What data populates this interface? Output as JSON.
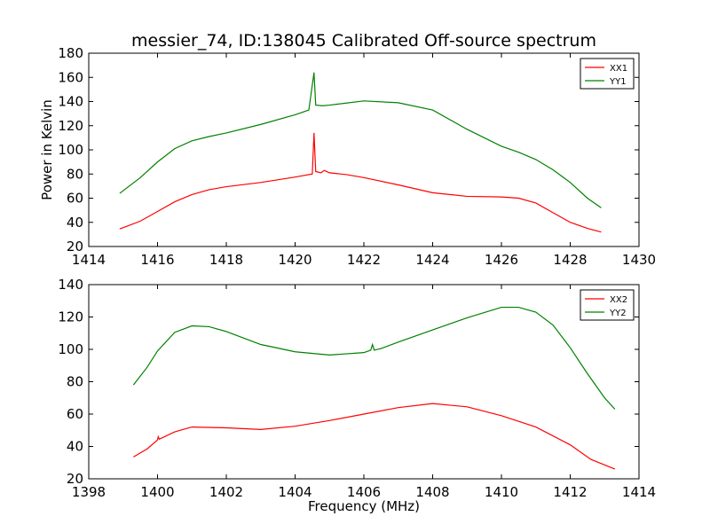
{
  "chart_data": [
    {
      "type": "line",
      "title": "messier_74, ID:138045 Calibrated Off-source spectrum",
      "xlabel": "",
      "ylabel": "Power in Kelvin",
      "xlim": [
        1414,
        1430
      ],
      "ylim": [
        20,
        180
      ],
      "xticks": [
        "1414",
        "1416",
        "1418",
        "1420",
        "1422",
        "1424",
        "1426",
        "1428",
        "1430"
      ],
      "yticks": [
        "20",
        "40",
        "60",
        "80",
        "100",
        "120",
        "140",
        "160",
        "180"
      ],
      "grid": false,
      "legend": "top-right",
      "series": [
        {
          "name": "XX1",
          "color": "#ff0000",
          "points": [
            [
              1414.9,
              34.5
            ],
            [
              1415.5,
              41
            ],
            [
              1416,
              49
            ],
            [
              1416.5,
              57
            ],
            [
              1417,
              63
            ],
            [
              1417.5,
              67
            ],
            [
              1418,
              69.5
            ],
            [
              1419,
              73
            ],
            [
              1420,
              77.5
            ],
            [
              1420.5,
              80
            ],
            [
              1420.55,
              114
            ],
            [
              1420.6,
              82
            ],
            [
              1420.75,
              81
            ],
            [
              1420.85,
              83
            ],
            [
              1421,
              81
            ],
            [
              1421.5,
              79.5
            ],
            [
              1422,
              77
            ],
            [
              1423,
              71
            ],
            [
              1424,
              64.5
            ],
            [
              1425,
              61.5
            ],
            [
              1426,
              61
            ],
            [
              1426.5,
              60
            ],
            [
              1427,
              56
            ],
            [
              1427.5,
              48
            ],
            [
              1428,
              40
            ],
            [
              1428.5,
              35
            ],
            [
              1428.9,
              32
            ]
          ]
        },
        {
          "name": "YY1",
          "color": "#008000",
          "points": [
            [
              1414.9,
              64
            ],
            [
              1415.5,
              77
            ],
            [
              1416,
              90
            ],
            [
              1416.5,
              101
            ],
            [
              1417,
              107.5
            ],
            [
              1417.5,
              111
            ],
            [
              1418,
              114
            ],
            [
              1419,
              121
            ],
            [
              1420,
              129
            ],
            [
              1420.4,
              133
            ],
            [
              1420.55,
              164
            ],
            [
              1420.6,
              137
            ],
            [
              1420.8,
              136.5
            ],
            [
              1421,
              137
            ],
            [
              1422,
              140.5
            ],
            [
              1423,
              139
            ],
            [
              1424,
              133
            ],
            [
              1425,
              117
            ],
            [
              1426,
              103
            ],
            [
              1426.5,
              98
            ],
            [
              1427,
              92
            ],
            [
              1427.5,
              83.5
            ],
            [
              1428,
              73
            ],
            [
              1428.5,
              60
            ],
            [
              1428.9,
              52
            ]
          ]
        }
      ]
    },
    {
      "type": "line",
      "title": "",
      "xlabel": "Frequency (MHz)",
      "ylabel": "",
      "xlim": [
        1398,
        1414
      ],
      "ylim": [
        20,
        140
      ],
      "xticks": [
        "1398",
        "1400",
        "1402",
        "1404",
        "1406",
        "1408",
        "1410",
        "1412",
        "1414"
      ],
      "yticks": [
        "20",
        "40",
        "60",
        "80",
        "100",
        "120",
        "140"
      ],
      "grid": false,
      "legend": "top-right",
      "series": [
        {
          "name": "XX2",
          "color": "#ff0000",
          "points": [
            [
              1399.3,
              33.5
            ],
            [
              1399.7,
              38.5
            ],
            [
              1400,
              44
            ],
            [
              1400.02,
              46
            ],
            [
              1400.05,
              44.5
            ],
            [
              1400.5,
              49
            ],
            [
              1401,
              52
            ],
            [
              1402,
              51.5
            ],
            [
              1403,
              50.5
            ],
            [
              1404,
              52.5
            ],
            [
              1405,
              56
            ],
            [
              1406,
              60
            ],
            [
              1407,
              64
            ],
            [
              1408,
              66.5
            ],
            [
              1409,
              64.5
            ],
            [
              1410,
              59
            ],
            [
              1411,
              52
            ],
            [
              1412,
              41
            ],
            [
              1412.6,
              32
            ],
            [
              1413.3,
              26
            ]
          ]
        },
        {
          "name": "YY2",
          "color": "#008000",
          "points": [
            [
              1399.3,
              78
            ],
            [
              1399.7,
              89
            ],
            [
              1400,
              99
            ],
            [
              1400.5,
              110.5
            ],
            [
              1401,
              114.5
            ],
            [
              1401.5,
              114
            ],
            [
              1402,
              111
            ],
            [
              1403,
              103
            ],
            [
              1404,
              98.5
            ],
            [
              1405,
              96.5
            ],
            [
              1406,
              98
            ],
            [
              1406.2,
              99.5
            ],
            [
              1406.25,
              103
            ],
            [
              1406.3,
              99.5
            ],
            [
              1406.5,
              100.5
            ],
            [
              1407,
              104.5
            ],
            [
              1408,
              112
            ],
            [
              1409,
              119.5
            ],
            [
              1410,
              126
            ],
            [
              1410.5,
              126
            ],
            [
              1411,
              123
            ],
            [
              1411.5,
              115
            ],
            [
              1412,
              101
            ],
            [
              1412.5,
              85
            ],
            [
              1413,
              70
            ],
            [
              1413.3,
              63
            ]
          ]
        }
      ]
    }
  ]
}
